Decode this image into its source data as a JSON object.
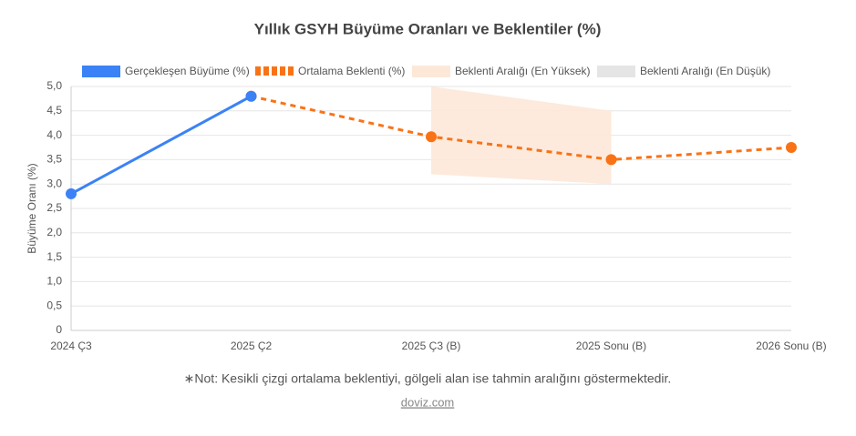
{
  "chart_data": {
    "type": "line",
    "title": "Yıllık GSYH Büyüme Oranları ve Beklentiler (%)",
    "y_label": "Büyüme Oranı (%)",
    "note": "∗Not: Kesikli çizgi ortalama beklentiyi, gölgeli alan ise tahmin aralığını göstermektedir.",
    "source": "doviz.com",
    "categories": [
      "2024 Ç3",
      "2025 Ç2",
      "2025 Ç3 (B)",
      "2025 Sonu (B)",
      "2026 Sonu (B)"
    ],
    "series": [
      {
        "name": "Gerçekleşen Büyüme (%)",
        "color": "#3b82f6",
        "values": [
          2.8,
          4.8,
          null,
          null,
          null
        ]
      },
      {
        "name": "Ortalama Beklenti (%)",
        "color": "#f97316",
        "dashed": true,
        "values": [
          null,
          4.8,
          3.97,
          3.5,
          3.75
        ]
      },
      {
        "name": "Beklenti Aralığı (En Yüksek)",
        "color": "#fde8d8",
        "band": "high",
        "values": [
          null,
          null,
          5.0,
          4.5,
          null
        ]
      },
      {
        "name": "Beklenti Aralığı (En Düşük)",
        "color": "#e5e5e5",
        "band": "low",
        "values": [
          null,
          null,
          3.2,
          3.0,
          null
        ]
      }
    ],
    "ylim": [
      0,
      5
    ],
    "yticks": [
      0,
      {
        "value": 0.5,
        "label": "0,5"
      },
      {
        "value": 1,
        "label": "1,0"
      },
      {
        "value": 1.5,
        "label": "1,5"
      },
      {
        "value": 2,
        "label": "2,0"
      },
      {
        "value": 2.5,
        "label": "2,5"
      },
      {
        "value": 3,
        "label": "3,0"
      },
      {
        "value": 3.5,
        "label": "3,5"
      },
      {
        "value": 4,
        "label": "4,0"
      },
      {
        "value": 4.5,
        "label": "4,5"
      },
      {
        "value": 5,
        "label": "5,0"
      }
    ],
    "grid": true,
    "legend": "top"
  }
}
